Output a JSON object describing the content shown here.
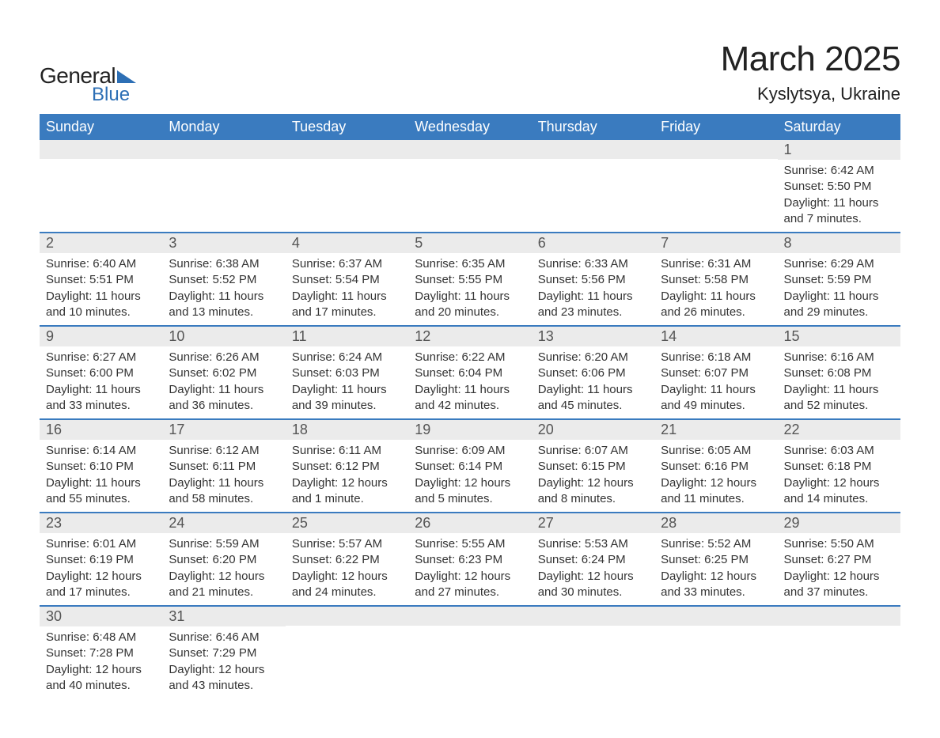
{
  "brand": {
    "line1": "General",
    "line2": "Blue"
  },
  "title": "March 2025",
  "location": "Kyslytsya, Ukraine",
  "colors": {
    "header_bg": "#3a7bbf",
    "header_fg": "#ffffff",
    "row_divider": "#3a7bbf",
    "daynum_bg": "#ebebeb",
    "text": "#333333",
    "brand_blue": "#2d6fb5"
  },
  "day_headers": [
    "Sunday",
    "Monday",
    "Tuesday",
    "Wednesday",
    "Thursday",
    "Friday",
    "Saturday"
  ],
  "weeks": [
    [
      null,
      null,
      null,
      null,
      null,
      null,
      {
        "n": "1",
        "sr": "Sunrise: 6:42 AM",
        "ss": "Sunset: 5:50 PM",
        "d1": "Daylight: 11 hours",
        "d2": "and 7 minutes."
      }
    ],
    [
      {
        "n": "2",
        "sr": "Sunrise: 6:40 AM",
        "ss": "Sunset: 5:51 PM",
        "d1": "Daylight: 11 hours",
        "d2": "and 10 minutes."
      },
      {
        "n": "3",
        "sr": "Sunrise: 6:38 AM",
        "ss": "Sunset: 5:52 PM",
        "d1": "Daylight: 11 hours",
        "d2": "and 13 minutes."
      },
      {
        "n": "4",
        "sr": "Sunrise: 6:37 AM",
        "ss": "Sunset: 5:54 PM",
        "d1": "Daylight: 11 hours",
        "d2": "and 17 minutes."
      },
      {
        "n": "5",
        "sr": "Sunrise: 6:35 AM",
        "ss": "Sunset: 5:55 PM",
        "d1": "Daylight: 11 hours",
        "d2": "and 20 minutes."
      },
      {
        "n": "6",
        "sr": "Sunrise: 6:33 AM",
        "ss": "Sunset: 5:56 PM",
        "d1": "Daylight: 11 hours",
        "d2": "and 23 minutes."
      },
      {
        "n": "7",
        "sr": "Sunrise: 6:31 AM",
        "ss": "Sunset: 5:58 PM",
        "d1": "Daylight: 11 hours",
        "d2": "and 26 minutes."
      },
      {
        "n": "8",
        "sr": "Sunrise: 6:29 AM",
        "ss": "Sunset: 5:59 PM",
        "d1": "Daylight: 11 hours",
        "d2": "and 29 minutes."
      }
    ],
    [
      {
        "n": "9",
        "sr": "Sunrise: 6:27 AM",
        "ss": "Sunset: 6:00 PM",
        "d1": "Daylight: 11 hours",
        "d2": "and 33 minutes."
      },
      {
        "n": "10",
        "sr": "Sunrise: 6:26 AM",
        "ss": "Sunset: 6:02 PM",
        "d1": "Daylight: 11 hours",
        "d2": "and 36 minutes."
      },
      {
        "n": "11",
        "sr": "Sunrise: 6:24 AM",
        "ss": "Sunset: 6:03 PM",
        "d1": "Daylight: 11 hours",
        "d2": "and 39 minutes."
      },
      {
        "n": "12",
        "sr": "Sunrise: 6:22 AM",
        "ss": "Sunset: 6:04 PM",
        "d1": "Daylight: 11 hours",
        "d2": "and 42 minutes."
      },
      {
        "n": "13",
        "sr": "Sunrise: 6:20 AM",
        "ss": "Sunset: 6:06 PM",
        "d1": "Daylight: 11 hours",
        "d2": "and 45 minutes."
      },
      {
        "n": "14",
        "sr": "Sunrise: 6:18 AM",
        "ss": "Sunset: 6:07 PM",
        "d1": "Daylight: 11 hours",
        "d2": "and 49 minutes."
      },
      {
        "n": "15",
        "sr": "Sunrise: 6:16 AM",
        "ss": "Sunset: 6:08 PM",
        "d1": "Daylight: 11 hours",
        "d2": "and 52 minutes."
      }
    ],
    [
      {
        "n": "16",
        "sr": "Sunrise: 6:14 AM",
        "ss": "Sunset: 6:10 PM",
        "d1": "Daylight: 11 hours",
        "d2": "and 55 minutes."
      },
      {
        "n": "17",
        "sr": "Sunrise: 6:12 AM",
        "ss": "Sunset: 6:11 PM",
        "d1": "Daylight: 11 hours",
        "d2": "and 58 minutes."
      },
      {
        "n": "18",
        "sr": "Sunrise: 6:11 AM",
        "ss": "Sunset: 6:12 PM",
        "d1": "Daylight: 12 hours",
        "d2": "and 1 minute."
      },
      {
        "n": "19",
        "sr": "Sunrise: 6:09 AM",
        "ss": "Sunset: 6:14 PM",
        "d1": "Daylight: 12 hours",
        "d2": "and 5 minutes."
      },
      {
        "n": "20",
        "sr": "Sunrise: 6:07 AM",
        "ss": "Sunset: 6:15 PM",
        "d1": "Daylight: 12 hours",
        "d2": "and 8 minutes."
      },
      {
        "n": "21",
        "sr": "Sunrise: 6:05 AM",
        "ss": "Sunset: 6:16 PM",
        "d1": "Daylight: 12 hours",
        "d2": "and 11 minutes."
      },
      {
        "n": "22",
        "sr": "Sunrise: 6:03 AM",
        "ss": "Sunset: 6:18 PM",
        "d1": "Daylight: 12 hours",
        "d2": "and 14 minutes."
      }
    ],
    [
      {
        "n": "23",
        "sr": "Sunrise: 6:01 AM",
        "ss": "Sunset: 6:19 PM",
        "d1": "Daylight: 12 hours",
        "d2": "and 17 minutes."
      },
      {
        "n": "24",
        "sr": "Sunrise: 5:59 AM",
        "ss": "Sunset: 6:20 PM",
        "d1": "Daylight: 12 hours",
        "d2": "and 21 minutes."
      },
      {
        "n": "25",
        "sr": "Sunrise: 5:57 AM",
        "ss": "Sunset: 6:22 PM",
        "d1": "Daylight: 12 hours",
        "d2": "and 24 minutes."
      },
      {
        "n": "26",
        "sr": "Sunrise: 5:55 AM",
        "ss": "Sunset: 6:23 PM",
        "d1": "Daylight: 12 hours",
        "d2": "and 27 minutes."
      },
      {
        "n": "27",
        "sr": "Sunrise: 5:53 AM",
        "ss": "Sunset: 6:24 PM",
        "d1": "Daylight: 12 hours",
        "d2": "and 30 minutes."
      },
      {
        "n": "28",
        "sr": "Sunrise: 5:52 AM",
        "ss": "Sunset: 6:25 PM",
        "d1": "Daylight: 12 hours",
        "d2": "and 33 minutes."
      },
      {
        "n": "29",
        "sr": "Sunrise: 5:50 AM",
        "ss": "Sunset: 6:27 PM",
        "d1": "Daylight: 12 hours",
        "d2": "and 37 minutes."
      }
    ],
    [
      {
        "n": "30",
        "sr": "Sunrise: 6:48 AM",
        "ss": "Sunset: 7:28 PM",
        "d1": "Daylight: 12 hours",
        "d2": "and 40 minutes."
      },
      {
        "n": "31",
        "sr": "Sunrise: 6:46 AM",
        "ss": "Sunset: 7:29 PM",
        "d1": "Daylight: 12 hours",
        "d2": "and 43 minutes."
      },
      null,
      null,
      null,
      null,
      null
    ]
  ]
}
